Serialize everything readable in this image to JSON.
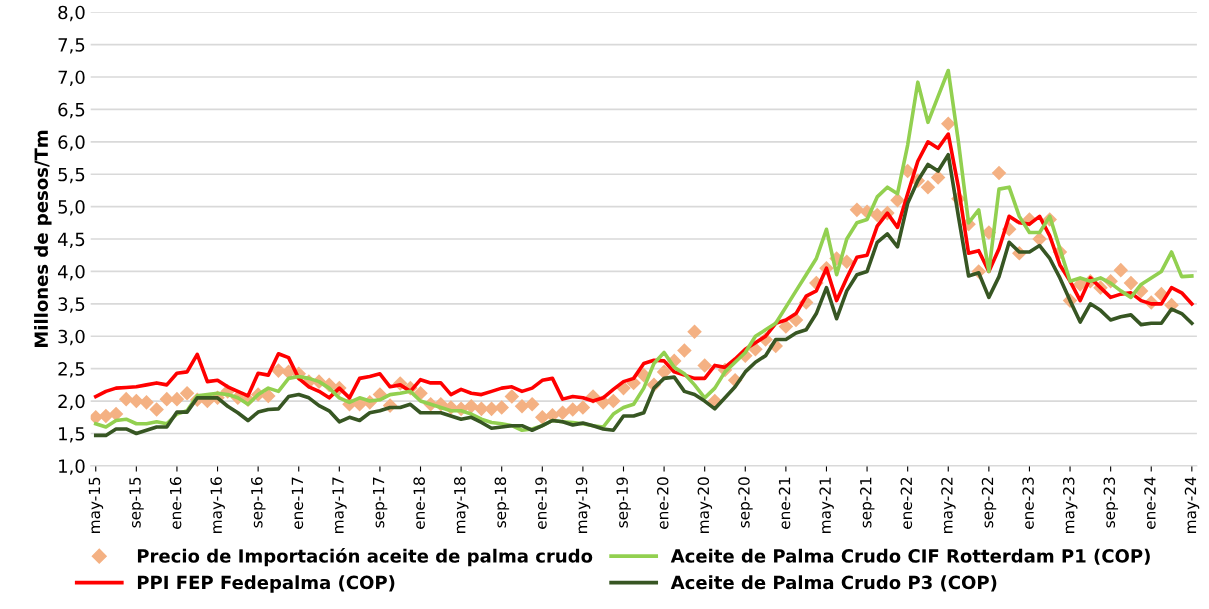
{
  "chart_data": {
    "type": "line",
    "ylabel": "Millones de pesos/Tm",
    "categories": [
      "may-15",
      null,
      null,
      null,
      "sep-15",
      null,
      null,
      null,
      "ene-16",
      null,
      null,
      null,
      "may-16",
      null,
      null,
      null,
      "sep-16",
      null,
      null,
      null,
      "ene-17",
      null,
      null,
      null,
      "may-17",
      null,
      null,
      null,
      "sep-17",
      null,
      null,
      null,
      "ene-18",
      null,
      null,
      null,
      "may-18",
      null,
      null,
      null,
      "sep-18",
      null,
      null,
      null,
      "ene-19",
      null,
      null,
      null,
      "may-19",
      null,
      null,
      null,
      "sep-19",
      null,
      null,
      null,
      "ene-20",
      null,
      null,
      null,
      "may-20",
      null,
      null,
      null,
      "sep-20",
      null,
      null,
      null,
      "ene-21",
      null,
      null,
      null,
      "may-21",
      null,
      null,
      null,
      "sep-21",
      null,
      null,
      null,
      "ene-22",
      null,
      null,
      null,
      "may-22",
      null,
      null,
      null,
      "sep-22",
      null,
      null,
      null,
      "ene-23",
      null,
      null,
      null,
      "may-23",
      null,
      null,
      null,
      "sep-23",
      null,
      null,
      null,
      "ene-24",
      null,
      null,
      null,
      "may-24"
    ],
    "ylim": [
      1,
      8
    ],
    "yticks": [
      {
        "value": 1,
        "label": "1,0"
      },
      {
        "value": 1.5,
        "label": "1,5"
      },
      {
        "value": 2,
        "label": "2,0"
      },
      {
        "value": 2.5,
        "label": "2,5"
      },
      {
        "value": 3,
        "label": "3,0"
      },
      {
        "value": 3.5,
        "label": "3,5"
      },
      {
        "value": 4,
        "label": "4,0"
      },
      {
        "value": 4.5,
        "label": "4,5"
      },
      {
        "value": 5,
        "label": "5,0"
      },
      {
        "value": 5.5,
        "label": "5,5"
      },
      {
        "value": 6,
        "label": "6,0"
      },
      {
        "value": 6.5,
        "label": "6,5"
      },
      {
        "value": 7,
        "label": "7,0"
      },
      {
        "value": 7.5,
        "label": "7,5"
      },
      {
        "value": 8,
        "label": "8,0"
      }
    ],
    "grid": "y",
    "legend": "bottom",
    "series": [
      {
        "name": "Precio de Importación aceite de palma crudo",
        "type": "scatter",
        "marker": "diamond",
        "color": "#f4b183",
        "values": [
          1.75,
          1.77,
          1.8,
          2.03,
          2.0,
          1.98,
          1.87,
          2.03,
          2.03,
          2.12,
          2.02,
          2.0,
          2.05,
          2.15,
          2.05,
          2.02,
          2.1,
          2.08,
          2.47,
          2.45,
          2.42,
          2.3,
          2.3,
          2.25,
          2.2,
          1.95,
          1.95,
          1.98,
          2.1,
          1.93,
          2.27,
          2.2,
          2.12,
          1.95,
          1.95,
          1.9,
          1.88,
          1.92,
          1.88,
          1.88,
          1.9,
          2.07,
          1.92,
          1.95,
          1.75,
          1.78,
          1.82,
          1.87,
          1.9,
          2.07,
          1.98,
          2.0,
          2.2,
          2.28,
          2.4,
          2.25,
          2.45,
          2.62,
          2.78,
          3.07,
          2.55,
          2.0,
          2.48,
          2.32,
          2.7,
          2.8,
          2.95,
          2.85,
          3.15,
          3.25,
          3.52,
          3.82,
          4.05,
          4.2,
          4.15,
          4.95,
          4.92,
          4.87,
          4.9,
          5.1,
          5.55,
          5.4,
          5.3,
          5.45,
          6.28,
          5.12,
          4.73,
          4.0,
          4.6,
          5.52,
          4.65,
          4.28,
          4.8,
          4.5,
          4.8,
          4.3,
          3.55,
          3.8,
          3.85,
          3.75,
          3.85,
          4.02,
          3.82,
          3.7,
          3.52,
          3.65,
          3.48,
          null,
          null
        ]
      },
      {
        "name": "PPI FEP Fedepalma (COP)",
        "color": "#ff0000",
        "values": [
          2.07,
          2.15,
          2.2,
          2.21,
          2.22,
          2.25,
          2.28,
          2.25,
          2.43,
          2.45,
          2.72,
          2.3,
          2.32,
          2.22,
          2.15,
          2.08,
          2.43,
          2.4,
          2.73,
          2.67,
          2.35,
          2.22,
          2.15,
          2.05,
          2.2,
          2.05,
          2.35,
          2.38,
          2.42,
          2.22,
          2.25,
          2.15,
          2.33,
          2.28,
          2.28,
          2.1,
          2.18,
          2.12,
          2.1,
          2.15,
          2.2,
          2.22,
          2.15,
          2.2,
          2.32,
          2.35,
          2.03,
          2.07,
          2.05,
          2.0,
          2.05,
          2.18,
          2.3,
          2.35,
          2.58,
          2.63,
          2.62,
          2.45,
          2.4,
          2.35,
          2.35,
          2.55,
          2.52,
          2.65,
          2.8,
          2.9,
          3.0,
          3.2,
          3.25,
          3.35,
          3.62,
          3.7,
          4.05,
          3.55,
          3.9,
          4.22,
          4.25,
          4.7,
          4.9,
          4.68,
          5.2,
          5.7,
          6.0,
          5.9,
          6.12,
          5.3,
          4.28,
          4.32,
          4.0,
          4.35,
          4.85,
          4.75,
          4.73,
          4.85,
          4.55,
          4.1,
          3.85,
          3.55,
          3.9,
          3.75,
          3.6,
          3.65,
          3.67,
          3.55,
          3.5,
          3.5,
          3.75,
          3.67,
          3.5
        ]
      },
      {
        "name": "Aceite de Palma Crudo CIF Rotterdam P1 (COP)",
        "color": "#92d050",
        "values": [
          1.65,
          1.6,
          1.7,
          1.72,
          1.65,
          1.65,
          1.68,
          1.65,
          1.8,
          1.85,
          2.08,
          2.1,
          2.12,
          2.1,
          2.05,
          1.95,
          2.1,
          2.2,
          2.15,
          2.35,
          2.38,
          2.35,
          2.3,
          2.2,
          2.05,
          1.98,
          2.05,
          2.0,
          2.02,
          2.1,
          2.12,
          2.15,
          2.0,
          1.95,
          1.9,
          1.85,
          1.85,
          1.8,
          1.72,
          1.67,
          1.65,
          1.62,
          1.55,
          1.57,
          1.62,
          1.7,
          1.68,
          1.67,
          1.65,
          1.62,
          1.6,
          1.8,
          1.9,
          1.95,
          2.2,
          2.58,
          2.75,
          2.52,
          2.42,
          2.25,
          2.05,
          2.2,
          2.45,
          2.6,
          2.75,
          3.0,
          3.1,
          3.2,
          3.45,
          3.7,
          3.95,
          4.2,
          4.65,
          3.95,
          4.5,
          4.75,
          4.8,
          5.15,
          5.3,
          5.2,
          5.95,
          6.92,
          6.3,
          6.7,
          7.1,
          6.0,
          4.75,
          4.95,
          4.0,
          5.27,
          5.3,
          4.85,
          4.6,
          4.6,
          4.85,
          4.35,
          3.85,
          3.9,
          3.85,
          3.9,
          3.82,
          3.7,
          3.6,
          3.8,
          3.9,
          4.0,
          4.3,
          3.92,
          3.93
        ]
      },
      {
        "name": "Aceite de Palma Crudo P3 (COP)",
        "color": "#375623",
        "values": [
          1.47,
          1.47,
          1.57,
          1.57,
          1.5,
          1.55,
          1.6,
          1.6,
          1.83,
          1.83,
          2.05,
          2.05,
          2.05,
          1.92,
          1.82,
          1.7,
          1.83,
          1.87,
          1.88,
          2.07,
          2.1,
          2.05,
          1.93,
          1.85,
          1.68,
          1.75,
          1.7,
          1.82,
          1.85,
          1.9,
          1.9,
          1.95,
          1.82,
          1.82,
          1.82,
          1.77,
          1.72,
          1.75,
          1.67,
          1.58,
          1.6,
          1.62,
          1.62,
          1.55,
          1.62,
          1.7,
          1.68,
          1.63,
          1.66,
          1.62,
          1.57,
          1.55,
          1.77,
          1.77,
          1.82,
          2.2,
          2.35,
          2.37,
          2.15,
          2.1,
          2.0,
          1.88,
          2.05,
          2.22,
          2.45,
          2.6,
          2.7,
          2.95,
          2.95,
          3.05,
          3.1,
          3.35,
          3.75,
          3.27,
          3.7,
          3.95,
          4.0,
          4.45,
          4.58,
          4.38,
          5.05,
          5.4,
          5.65,
          5.55,
          5.8,
          4.85,
          3.93,
          3.98,
          3.6,
          3.92,
          4.45,
          4.3,
          4.3,
          4.4,
          4.2,
          3.9,
          3.55,
          3.22,
          3.5,
          3.4,
          3.25,
          3.3,
          3.33,
          3.18,
          3.2,
          3.2,
          3.42,
          3.35,
          3.2
        ]
      }
    ]
  }
}
